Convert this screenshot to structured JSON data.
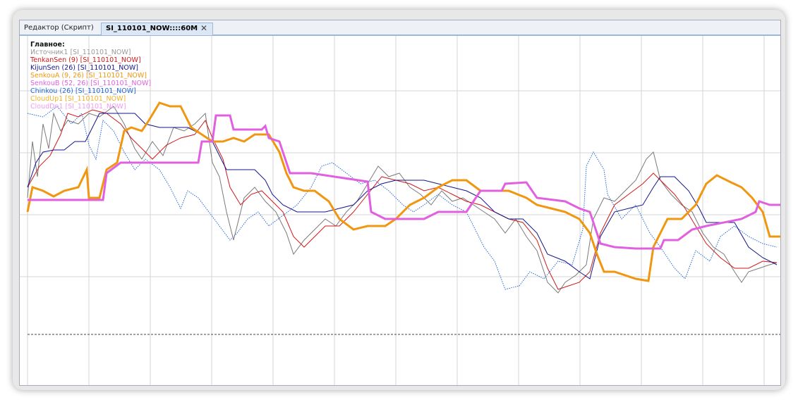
{
  "tabs": [
    "Редактор (Скрипт)",
    "SI_110101_NOW::::60M"
  ],
  "legend": {
    "title": "Главное:",
    "entries": [
      {
        "text": "Источник1 [SI_110101_NOW]",
        "color": "#9a9a9a"
      },
      {
        "text": "TenkanSen (9) [SI_110101_NOW]",
        "color": "#cc1a1a"
      },
      {
        "text": "KijunSen (26) [SI_110101_NOW]",
        "color": "#14148c"
      },
      {
        "text": "SenkouA (9, 26) [SI_110101_NOW]",
        "color": "#f0960f"
      },
      {
        "text": "SenkouB (52, 26) [SI_110101_NOW]",
        "color": "#e060e0"
      },
      {
        "text": "Chinkou (26) [SI_110101_NOW]",
        "color": "#2266d8"
      },
      {
        "text": "CloudUp1 [SI_110101_NOW]",
        "color": "#f0b020"
      },
      {
        "text": "CloudDn1 [SI_110101_NOW]",
        "color": "#f09af0"
      }
    ]
  }
}
